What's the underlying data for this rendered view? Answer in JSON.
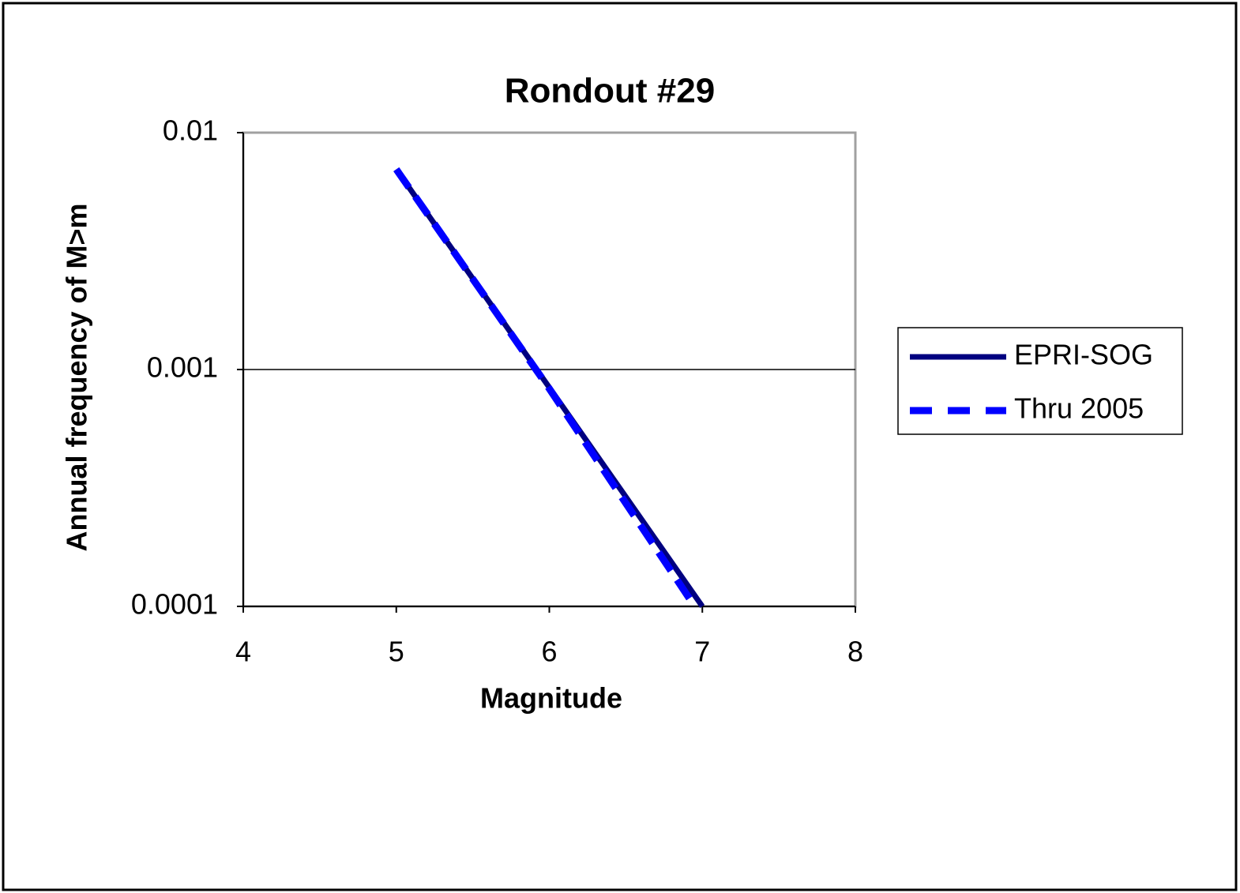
{
  "chart_data": {
    "type": "line",
    "title": "Rondout #29",
    "x_label": "Magnitude",
    "y_label": "Annual frequency of M>m",
    "series": [
      {
        "name": "EPRI-SOG",
        "color": "#000080",
        "dash": "solid",
        "x": [
          5,
          5.5,
          6,
          6.5,
          7
        ],
        "values": [
          0.007,
          0.00242,
          0.00084,
          0.00029,
          0.0001
        ]
      },
      {
        "name": "Thru 2005",
        "color": "#0000ff",
        "dash": "dashed",
        "x": [
          5,
          6,
          6.95
        ],
        "values": [
          0.007,
          0.00083,
          0.0001
        ]
      }
    ],
    "xlim": [
      4,
      8
    ],
    "xticks": [
      4,
      5,
      6,
      7,
      8
    ],
    "ylim": [
      0.0001,
      0.01
    ],
    "yticks": [
      0.0001,
      0.001,
      0.01
    ],
    "log_y": true,
    "grid": true,
    "legend": "right"
  }
}
